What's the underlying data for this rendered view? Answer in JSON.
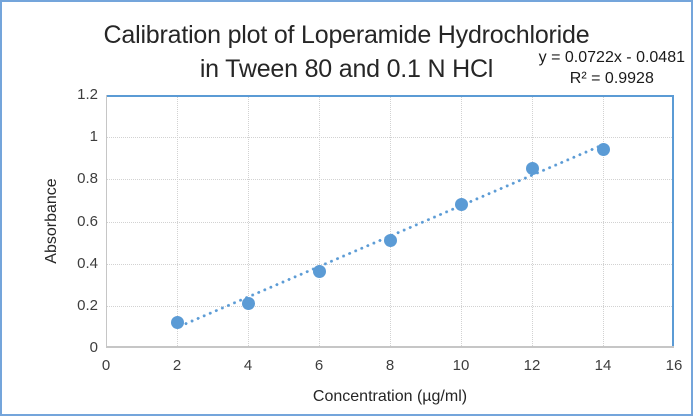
{
  "frame": {
    "border_color": "#74A5DB",
    "background": "#FFFFFF"
  },
  "chart_data": {
    "type": "scatter",
    "title_line1": "Calibration plot of Loperamide Hydrochloride",
    "title_line2": "in Tween 80 and 0.1 N HCl",
    "annotation": {
      "equation": "y = 0.0722x - 0.0481",
      "r_squared": "R² = 0.9928"
    },
    "xlabel": "Concentration (µg/ml)",
    "ylabel": "Absorbance",
    "xlim": [
      0,
      16
    ],
    "ylim": [
      0,
      1.2
    ],
    "x_ticks": [
      0,
      2,
      4,
      6,
      8,
      10,
      12,
      14,
      16
    ],
    "x_tick_labels": [
      "0",
      "2",
      "4",
      "6",
      "8",
      "10",
      "12",
      "14",
      "16"
    ],
    "y_ticks": [
      0,
      0.2,
      0.4,
      0.6,
      0.8,
      1,
      1.2
    ],
    "y_tick_labels": [
      "0",
      "0.2",
      "0.4",
      "0.6",
      "0.8",
      "1",
      "1.2"
    ],
    "grid": true,
    "legend": "none",
    "series": [
      {
        "name": "Absorbance",
        "x": [
          2,
          4,
          6,
          8,
          10,
          12,
          14
        ],
        "y": [
          0.12,
          0.21,
          0.365,
          0.51,
          0.68,
          0.85,
          0.94
        ]
      }
    ],
    "trendline": {
      "type": "linear",
      "style": "dotted",
      "slope": 0.0722,
      "intercept": -0.0481,
      "x_start": 2,
      "x_end": 14
    },
    "colors": {
      "marker": "#5B9BD5",
      "trendline": "#5B9BD5",
      "gridline": "#D2D2D2",
      "axis_line": "#C6C6C6",
      "plot_border": "#5B9BD5",
      "tick_text": "#3D3D3D",
      "title_text": "#262626"
    }
  }
}
